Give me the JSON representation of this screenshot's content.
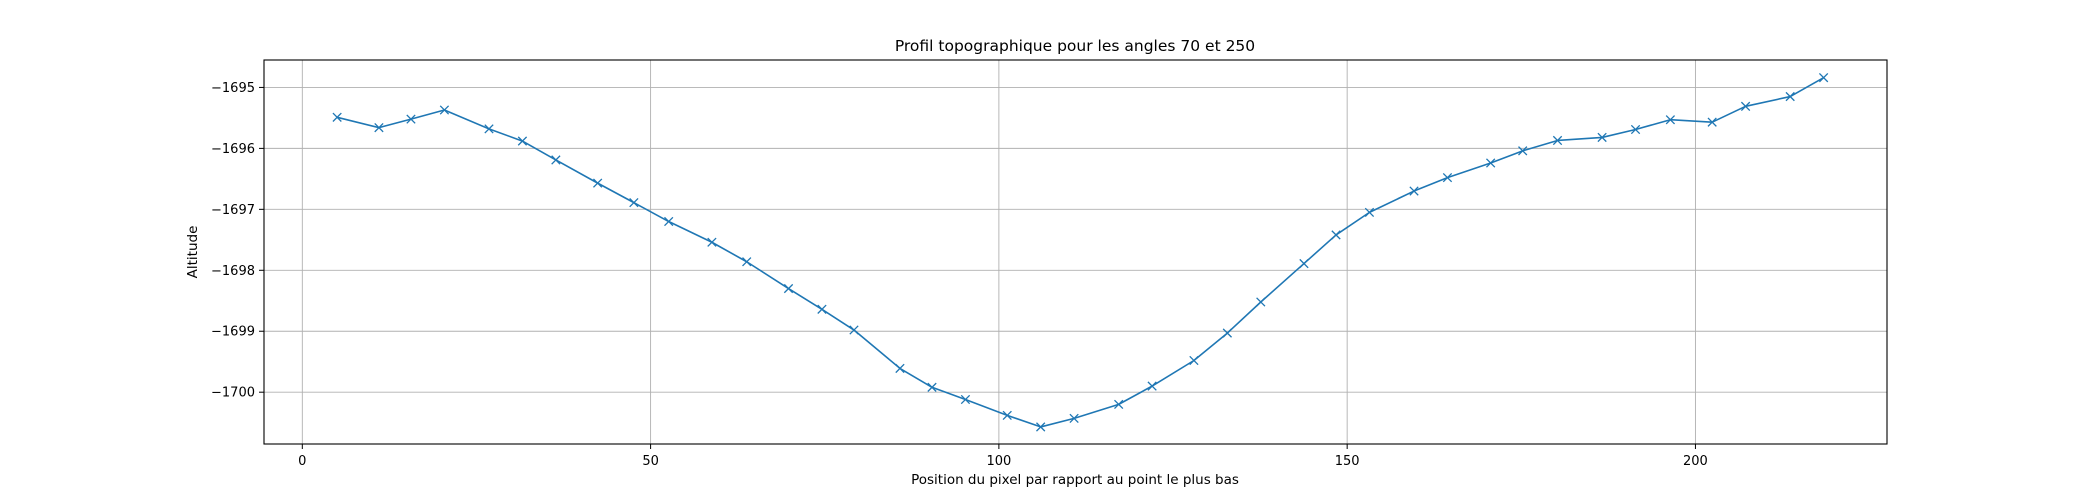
{
  "chart_data": {
    "type": "line",
    "title": "Profil topographique pour les angles 70 et 250",
    "xlabel": "Position du pixel par rapport au point le plus bas",
    "ylabel": "Altitude",
    "xlim": [
      -5.5,
      227.5
    ],
    "ylim": [
      -1700.85,
      -1694.55
    ],
    "xticks": [
      0,
      50,
      100,
      150,
      200
    ],
    "xtick_labels": [
      "0",
      "50",
      "100",
      "150",
      "200"
    ],
    "yticks": [
      -1700,
      -1699,
      -1698,
      -1697,
      -1696,
      -1695
    ],
    "ytick_labels": [
      "−1700",
      "−1699",
      "−1698",
      "−1697",
      "−1696",
      "−1695"
    ],
    "grid": true,
    "marker": "x",
    "color": "#1f77b4",
    "series": [
      {
        "x": [
          5,
          11,
          15.6,
          20.4,
          26.8,
          31.6,
          36.4,
          42.4,
          47.6,
          52.6,
          58.8,
          63.8,
          69.8,
          74.6,
          79.2,
          85.8,
          90.4,
          95.2,
          101.2,
          106,
          110.8,
          117.2,
          122,
          128,
          132.8,
          137.6,
          143.8,
          148.4,
          153.2,
          159.6,
          164.4,
          170.6,
          175.2,
          180.2,
          186.6,
          191.4,
          196.4,
          202.4,
          207.2,
          213.6,
          218.4
        ],
        "y": [
          -1695.49,
          -1695.66,
          -1695.52,
          -1695.37,
          -1695.68,
          -1695.88,
          -1696.19,
          -1696.57,
          -1696.89,
          -1697.2,
          -1697.54,
          -1697.86,
          -1698.3,
          -1698.64,
          -1698.98,
          -1699.61,
          -1699.92,
          -1700.12,
          -1700.38,
          -1700.57,
          -1700.43,
          -1700.2,
          -1699.9,
          -1699.48,
          -1699.03,
          -1698.52,
          -1697.89,
          -1697.42,
          -1697.05,
          -1696.7,
          -1696.48,
          -1696.24,
          -1696.04,
          -1695.87,
          -1695.82,
          -1695.69,
          -1695.53,
          -1695.57,
          -1695.31,
          -1695.15,
          -1694.84
        ]
      }
    ]
  }
}
